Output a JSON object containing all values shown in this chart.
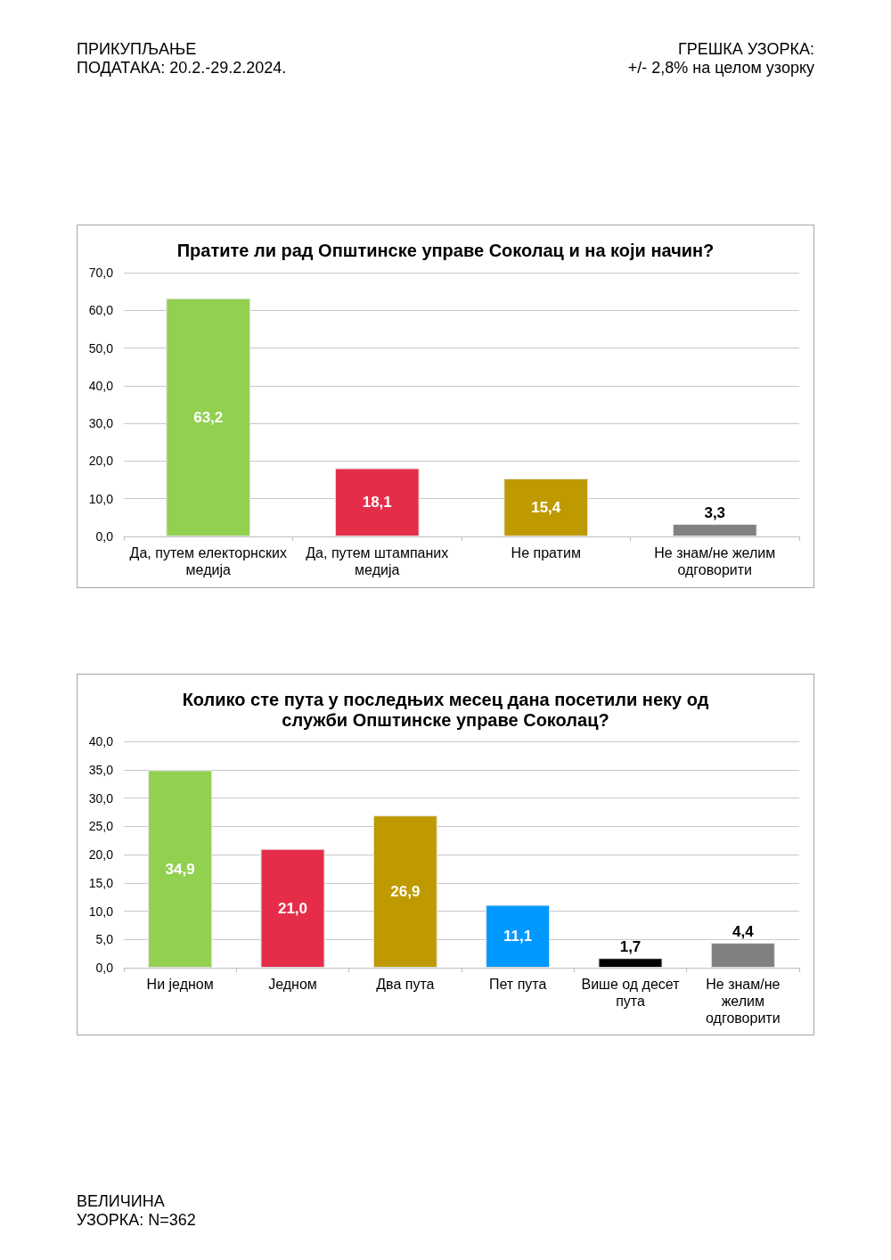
{
  "chart_data": [
    {
      "type": "bar",
      "title": "Пратите ли рад Општинске управе Соколац и на који начин?",
      "categories": [
        "Да, путем електорнских медија",
        "Да, путем штампаних медија",
        "Не пратим",
        "Не знам/не желим одговорити"
      ],
      "values": [
        63.2,
        18.1,
        15.4,
        3.3
      ],
      "colors": [
        "#92d050",
        "#e52d4a",
        "#bf9900",
        "#808080"
      ],
      "value_labels": [
        "63,2",
        "18,1",
        "15,4",
        "3,3"
      ],
      "ylim": [
        0,
        70
      ],
      "yticks": [
        {
          "value": 0,
          "label": "0,0"
        },
        {
          "value": 10,
          "label": "10,0"
        },
        {
          "value": 20,
          "label": "20,0"
        },
        {
          "value": 30,
          "label": "30,0"
        },
        {
          "value": 40,
          "label": "40,0"
        },
        {
          "value": 50,
          "label": "50,0"
        },
        {
          "value": 60,
          "label": "60,0"
        },
        {
          "value": 70,
          "label": "70,0"
        }
      ],
      "grid": "y",
      "annotations": [
        "ПРИКУПЉАЊЕ\nПОДАТАКА: 20.2.-29.2.2024.",
        "ГРЕШКА УЗОРКА:\n+/- 2,8% на целом узорку"
      ]
    },
    {
      "type": "bar",
      "title": "Колико сте пута у последњих месец дана посетили неку од служби Општинске управе Соколац?",
      "categories": [
        "Ни једном",
        "Једном",
        "Два пута",
        "Пет пута",
        "Више од десет пута",
        "Не знам/не желим одговорити"
      ],
      "values": [
        34.9,
        21.0,
        26.9,
        11.1,
        1.7,
        4.4
      ],
      "colors": [
        "#92d050",
        "#e52d4a",
        "#bf9900",
        "#0099ff",
        "#000000",
        "#808080"
      ],
      "value_labels": [
        "34,9",
        "21,0",
        "26,9",
        "11,1",
        "1,7",
        "4,4"
      ],
      "ylim": [
        0,
        40
      ],
      "yticks": [
        {
          "value": 0,
          "label": "0,0"
        },
        {
          "value": 5,
          "label": "5,0"
        },
        {
          "value": 10,
          "label": "10,0"
        },
        {
          "value": 15,
          "label": "15,0"
        },
        {
          "value": 20,
          "label": "20,0"
        },
        {
          "value": 25,
          "label": "25,0"
        },
        {
          "value": 30,
          "label": "30,0"
        },
        {
          "value": 35,
          "label": "35,0"
        },
        {
          "value": 40,
          "label": "40,0"
        }
      ],
      "grid": "y",
      "annotations": [
        "ВЕЛИЧИНА\nУЗОРКА: N=362"
      ]
    }
  ]
}
